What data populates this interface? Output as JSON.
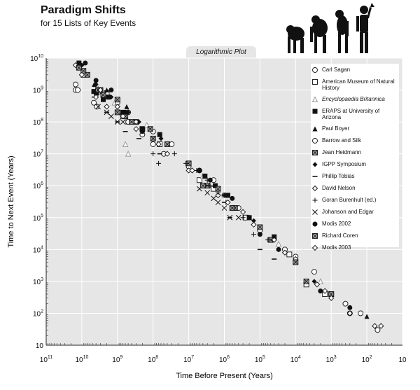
{
  "header": {
    "title": "Paradigm Shifts",
    "subtitle": "for 15 Lists of Key Events",
    "plot_tab": "Logarithmic Plot"
  },
  "chart_data": {
    "type": "scatter",
    "title": "Paradigm Shifts",
    "subtitle": "for 15 Lists of Key Events",
    "xlabel": "Time Before Present (Years)",
    "ylabel": "Time to Next  Event (Years)",
    "x_scale": "log-reversed",
    "y_scale": "log",
    "xlim": [
      100000000000,
      10
    ],
    "ylim": [
      10,
      10000000000
    ],
    "x_ticks": [
      {
        "base": "10",
        "exp": "11"
      },
      {
        "base": "10",
        "exp": "10"
      },
      {
        "base": "10",
        "exp": "9"
      },
      {
        "base": "10",
        "exp": "8"
      },
      {
        "base": "10",
        "exp": "7"
      },
      {
        "base": "10",
        "exp": "6"
      },
      {
        "base": "10",
        "exp": "5"
      },
      {
        "base": "10",
        "exp": "4"
      },
      {
        "base": "10",
        "exp": "3"
      },
      {
        "base": "10",
        "exp": "2"
      },
      {
        "base": "10",
        "exp": ""
      }
    ],
    "y_ticks": [
      {
        "base": "10",
        "exp": "10"
      },
      {
        "base": "10",
        "exp": "9"
      },
      {
        "base": "10",
        "exp": "8"
      },
      {
        "base": "10",
        "exp": "7"
      },
      {
        "base": "10",
        "exp": "6"
      },
      {
        "base": "10",
        "exp": "5"
      },
      {
        "base": "10",
        "exp": "4"
      },
      {
        "base": "10",
        "exp": "3"
      },
      {
        "base": "10",
        "exp": "2"
      },
      {
        "base": "10",
        "exp": ""
      }
    ],
    "grid": true,
    "legend_position": "top-right",
    "colors": {
      "plot_bg": "#e6e6e6",
      "grid": "#ffffff",
      "marker": "#111111",
      "marker_gray": "#9a9a9a"
    },
    "series": [
      {
        "name": "Carl Sagan",
        "marker": "circle-open",
        "points": [
          [
            15000000000,
            1000000000
          ],
          [
            4600000000,
            400000000
          ],
          [
            3800000000,
            300000000
          ],
          [
            1000000000,
            500000000
          ],
          [
            500000000,
            200000000
          ],
          [
            100000000,
            50000000
          ],
          [
            30000000,
            20000000
          ],
          [
            5000000,
            3000000
          ],
          [
            1000000,
            500000
          ],
          [
            100000,
            40000
          ],
          [
            10000,
            6000
          ],
          [
            1000,
            400
          ],
          [
            300,
            100
          ],
          [
            50,
            30
          ]
        ]
      },
      {
        "name": "American Museum of Natural History",
        "marker": "square-open",
        "points": [
          [
            9000000000,
            3000000000
          ],
          [
            3500000000,
            900000000
          ],
          [
            2000000000,
            800000000
          ],
          [
            700000000,
            150000000
          ],
          [
            200000000,
            60000000
          ],
          [
            65000000,
            20000000
          ],
          [
            5000000,
            1500000
          ],
          [
            2000000,
            800000
          ],
          [
            250000,
            100000
          ],
          [
            15000,
            7000
          ],
          [
            5000,
            800
          ],
          [
            1500,
            400
          ]
        ]
      },
      {
        "name": "Encyclopaedia Britannica",
        "marker": "triangle-open",
        "points": [
          [
            4000000000,
            1500000000
          ],
          [
            3500000000,
            1000000000
          ],
          [
            1200000000,
            400000000
          ],
          [
            600000000,
            20000000
          ],
          [
            500000000,
            10000000
          ],
          [
            150000000,
            80000000
          ],
          [
            4000000,
            2000000
          ],
          [
            1000000,
            500000
          ],
          [
            200000,
            100000
          ],
          [
            30000,
            15000
          ],
          [
            2000,
            1000
          ]
        ]
      },
      {
        "name": "ERAPS at University of Arizona",
        "marker": "square-filled",
        "points": [
          [
            12000000000,
            7000000000
          ],
          [
            4600000000,
            900000000
          ],
          [
            3900000000,
            800000000
          ],
          [
            2500000000,
            500000000
          ],
          [
            1800000000,
            600000000
          ],
          [
            700000000,
            200000000
          ],
          [
            500000000,
            100000000
          ],
          [
            200000000,
            60000000
          ],
          [
            65000000,
            40000000
          ],
          [
            3500000,
            2000000
          ],
          [
            1800000,
            1000000
          ],
          [
            800000,
            500000
          ],
          [
            200000,
            100000
          ],
          [
            40000,
            25000
          ],
          [
            10000,
            4000
          ]
        ]
      },
      {
        "name": "Paul Boyer",
        "marker": "triangle-filled",
        "points": [
          [
            4500000000,
            1500000000
          ],
          [
            3800000000,
            1000000000
          ],
          [
            2000000000,
            1000000000
          ],
          [
            1000000000,
            500000000
          ],
          [
            550000000,
            300000000
          ],
          [
            3000000,
            1000000
          ],
          [
            100000,
            50000
          ],
          [
            10000,
            5000
          ],
          [
            100,
            80
          ]
        ]
      },
      {
        "name": "Barrow and Silk",
        "marker": "circle-open",
        "points": [
          [
            15000000000,
            1500000000
          ],
          [
            13000000000,
            1000000000
          ],
          [
            1000000000,
            400000000
          ],
          [
            500000000,
            100000000
          ],
          [
            200000000,
            40000000
          ],
          [
            100000000,
            20000000
          ],
          [
            50000000,
            10000000
          ],
          [
            10000000,
            4000000
          ],
          [
            2000000,
            1500000
          ],
          [
            400000,
            200000
          ],
          [
            100000,
            50000
          ],
          [
            20000,
            10000
          ],
          [
            3000,
            2000
          ],
          [
            400,
            200
          ],
          [
            150,
            100
          ]
        ]
      },
      {
        "name": "Jean Heidmann",
        "marker": "square-x",
        "points": [
          [
            9000000000,
            4000000000
          ],
          [
            7000000000,
            3000000000
          ],
          [
            3500000000,
            1000000000
          ],
          [
            2500000000,
            700000000
          ],
          [
            1000000000,
            200000000
          ],
          [
            600000000,
            150000000
          ],
          [
            300000000,
            100000000
          ],
          [
            120000000,
            60000000
          ],
          [
            40000000,
            20000000
          ],
          [
            10000000,
            5000000
          ],
          [
            3000000,
            1000000
          ],
          [
            1500000,
            800000
          ],
          [
            500000,
            200000
          ],
          [
            50000,
            20000
          ],
          [
            5000,
            1000
          ],
          [
            1000,
            400
          ]
        ]
      },
      {
        "name": "IGPP Symposium",
        "marker": "diamond-filled",
        "points": [
          [
            10000000000,
            6000000000
          ],
          [
            4000000000,
            1500000000
          ],
          [
            3000000000,
            1000000000
          ],
          [
            1500000000,
            600000000
          ],
          [
            500000000,
            200000000
          ],
          [
            250000000,
            100000000
          ],
          [
            60000000,
            30000000
          ],
          [
            5000000,
            3000000
          ],
          [
            1000000,
            500000
          ],
          [
            150000,
            80000
          ],
          [
            30000,
            10000
          ],
          [
            3000,
            1000
          ]
        ]
      },
      {
        "name": "Phillip Tobias",
        "marker": "dash",
        "points": [
          [
            4500000000,
            600000000
          ],
          [
            2000000000,
            200000000
          ],
          [
            1000000000,
            100000000
          ],
          [
            600000000,
            50000000
          ],
          [
            250000000,
            30000000
          ],
          [
            65000000,
            10000000
          ],
          [
            3000000,
            1000000
          ],
          [
            1800000,
            1000000
          ],
          [
            1000000,
            300000
          ],
          [
            700000,
            100000
          ],
          [
            100000,
            10000
          ],
          [
            40000,
            5000
          ]
        ]
      },
      {
        "name": "David Nelson",
        "marker": "diamond-open",
        "points": [
          [
            15000000000,
            6000000000
          ],
          [
            4000000000,
            600000000
          ],
          [
            2000000000,
            300000000
          ],
          [
            700000000,
            150000000
          ],
          [
            300000000,
            60000000
          ],
          [
            100000000,
            30000000
          ],
          [
            40000000,
            10000000
          ],
          [
            10000000,
            3000000
          ],
          [
            1500000,
            500000
          ],
          [
            600000,
            200000
          ],
          [
            300000,
            150000
          ],
          [
            100000,
            50000
          ],
          [
            40000,
            20000
          ],
          [
            10000,
            5000
          ],
          [
            1500,
            500
          ],
          [
            300,
            100
          ],
          [
            60,
            40
          ]
        ]
      },
      {
        "name": "Goran Burenhult (ed.)",
        "marker": "plus",
        "points": [
          [
            100000000,
            10000000
          ],
          [
            70000000,
            5000000
          ],
          [
            25000000,
            10000000
          ],
          [
            12000000,
            5000000
          ],
          [
            6000000,
            3000000
          ],
          [
            3000000,
            1500000
          ],
          [
            2500000,
            1000000
          ],
          [
            1500000,
            600000
          ],
          [
            900000,
            300000
          ],
          [
            300000,
            100000
          ],
          [
            150000,
            30000
          ],
          [
            60000,
            20000
          ]
        ]
      },
      {
        "name": "Johanson and Edgar",
        "marker": "x",
        "points": [
          [
            3500000000,
            300000000
          ],
          [
            2000000000,
            200000000
          ],
          [
            1500000000,
            150000000
          ],
          [
            1000000000,
            100000000
          ],
          [
            700000000,
            100000000
          ],
          [
            5000000,
            800000
          ],
          [
            3000000,
            600000
          ],
          [
            2000000,
            400000
          ],
          [
            1500000,
            300000
          ],
          [
            1000000,
            200000
          ],
          [
            700000,
            100000
          ],
          [
            400000,
            100000
          ]
        ]
      },
      {
        "name": "Modis 2002",
        "marker": "circle-filled",
        "points": [
          [
            8000000000,
            7000000000
          ],
          [
            4000000000,
            2000000000
          ],
          [
            1500000000,
            1000000000
          ],
          [
            600000000,
            200000000
          ],
          [
            200000000,
            50000000
          ],
          [
            5000000,
            3000000
          ],
          [
            2500000,
            1500000
          ],
          [
            600000,
            400000
          ],
          [
            100000,
            30000
          ],
          [
            30000,
            10000
          ],
          [
            2000,
            500
          ],
          [
            300,
            150
          ]
        ]
      },
      {
        "name": "Richard Coren",
        "marker": "square-x",
        "points": [
          [
            12000000000,
            5000000000
          ],
          [
            3000000000,
            1000000000
          ],
          [
            1000000000,
            500000000
          ],
          [
            400000000,
            100000000
          ],
          [
            100000000,
            30000000
          ],
          [
            4000000,
            1000000
          ],
          [
            600000,
            200000
          ],
          [
            100000,
            50000
          ],
          [
            10000,
            4000
          ],
          [
            1000,
            400
          ]
        ]
      },
      {
        "name": "Modis 2003",
        "marker": "diamond-open",
        "points": [
          [
            10000000000,
            3000000000
          ],
          [
            3000000000,
            1000000000
          ],
          [
            1000000000,
            300000000
          ],
          [
            300000000,
            100000000
          ],
          [
            70000000,
            20000000
          ],
          [
            8000000,
            3000000
          ],
          [
            800000,
            300000
          ],
          [
            150000,
            60000
          ],
          [
            20000,
            8000
          ],
          [
            2500,
            800
          ],
          [
            1000,
            300
          ],
          [
            40,
            40
          ]
        ]
      }
    ]
  }
}
